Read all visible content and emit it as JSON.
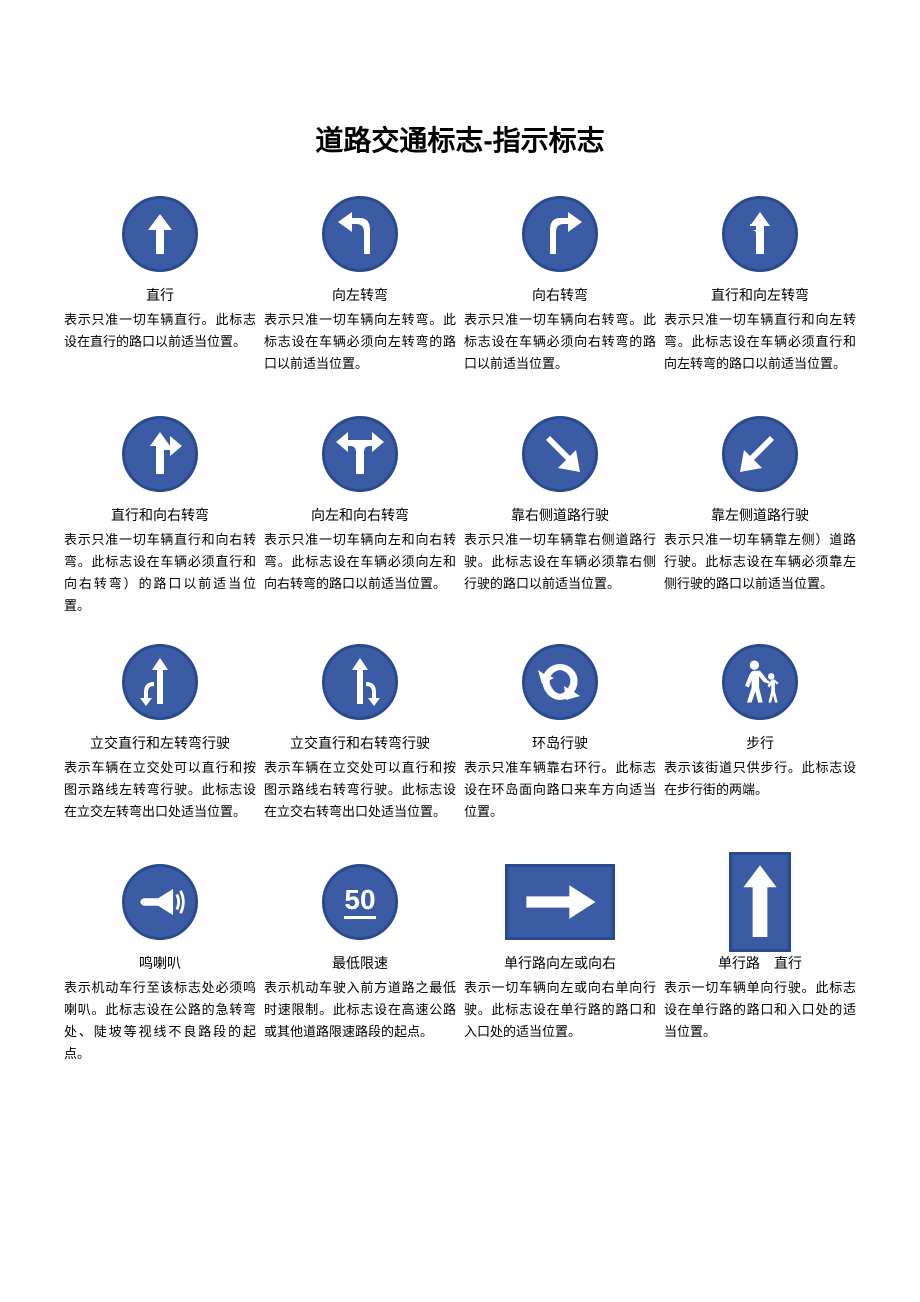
{
  "title": "道路交通标志-指示标志",
  "colors": {
    "sign_bg": "#3b5ba5",
    "sign_border": "#2a4a90",
    "arrow": "#ffffff",
    "page_bg": "#ffffff",
    "text": "#000000"
  },
  "signs": [
    {
      "icon": "arrow-up",
      "label": "直行",
      "desc": "表示只准一切车辆直行。此标志设在直行的路口以前适当位置。"
    },
    {
      "icon": "arrow-left-turn",
      "label": "向左转弯",
      "desc": "表示只准一切车辆向左转弯。此标志设在车辆必须向左转弯的路口以前适当位置。"
    },
    {
      "icon": "arrow-right-turn",
      "label": "向右转弯",
      "desc": "表示只准一切车辆向右转弯。此标志设在车辆必须向右转弯的路口以前适当位置。"
    },
    {
      "icon": "arrow-up-left",
      "label": "直行和向左转弯",
      "desc": "表示只准一切车辆直行和向左转弯。此标志设在车辆必须直行和向左转弯的路口以前适当位置。"
    },
    {
      "icon": "arrow-up-right",
      "label": "直行和向右转弯",
      "desc": "表示只准一切车辆直行和向右转弯。此标志设在车辆必须直行和向右转弯）的路口以前适当位置。"
    },
    {
      "icon": "arrow-left-right",
      "label": "向左和向右转弯",
      "desc": "表示只准一切车辆向左和向右转弯。此标志设在车辆必须向左和向右转弯的路口以前适当位置。"
    },
    {
      "icon": "arrow-down-right",
      "label": "靠右侧道路行驶",
      "desc": "表示只准一切车辆靠右侧道路行驶。此标志设在车辆必须靠右侧行驶的路口以前适当位置。"
    },
    {
      "icon": "arrow-down-left",
      "label": "靠左侧道路行驶",
      "desc": "表示只准一切车辆靠左侧）道路行驶。此标志设在车辆必须靠左侧行驶的路口以前适当位置。"
    },
    {
      "icon": "interchange-left",
      "label": "立交直行和左转弯行驶",
      "desc": "表示车辆在立交处可以直行和按图示路线左转弯行驶。此标志设在立交左转弯出口处适当位置。"
    },
    {
      "icon": "interchange-right",
      "label": "立交直行和右转弯行驶",
      "desc": "表示车辆在立交处可以直行和按图示路线右转弯行驶。此标志设在立交右转弯出口处适当位置。"
    },
    {
      "icon": "roundabout",
      "label": "环岛行驶",
      "desc": "表示只准车辆靠右环行。此标志设在环岛面向路口来车方向适当位置。"
    },
    {
      "icon": "pedestrian",
      "label": "步行",
      "desc": "表示该街道只供步行。此标志设在步行街的两端。"
    },
    {
      "icon": "horn",
      "label": "鸣喇叭",
      "desc": "表示机动车行至该标志处必须鸣喇叭。此标志设在公路的急转弯处、陡坡等视线不良路段的起点。"
    },
    {
      "icon": "speed-50",
      "label": "最低限速",
      "desc": "表示机动车驶入前方道路之最低时速限制。此标志设在高速公路或其他道路限速路段的起点。"
    },
    {
      "icon": "oneway-right",
      "shape": "rect",
      "label": "单行路向左或向右",
      "desc": "表示一切车辆向左或向右单向行驶。此标志设在单行路的路口和入口处的适当位置。"
    },
    {
      "icon": "oneway-up",
      "shape": "rect-tall",
      "label": "单行路　直行",
      "desc": "表示一切车辆单向行驶。此标志设在单行路的路口和入口处的适当位置。"
    }
  ]
}
